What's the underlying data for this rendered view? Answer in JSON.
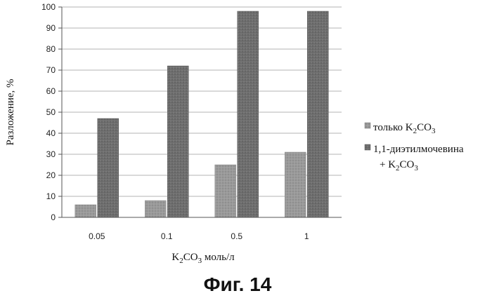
{
  "chart_data": {
    "type": "bar",
    "categories": [
      "0.05",
      "0.1",
      "0.5",
      "1"
    ],
    "series": [
      {
        "name_main": "только K",
        "name_sub": "2",
        "name_main2": "CO",
        "name_sub2": "3",
        "values": [
          6,
          8,
          25,
          31
        ]
      },
      {
        "name_main": "1,1-диэтилмочевина",
        "name_line2_main": "+ K",
        "name_line2_sub": "2",
        "name_line2_main2": "CO",
        "name_line2_sub2": "3",
        "values": [
          47,
          72,
          98,
          98
        ]
      }
    ],
    "ylim": [
      0,
      100
    ],
    "yticks": [
      "0",
      "10",
      "20",
      "30",
      "40",
      "50",
      "60",
      "70",
      "80",
      "90",
      "100"
    ],
    "ylabel": "Разложение, %",
    "xlabel_parts": {
      "a": "K",
      "b": "2",
      "c": "CO",
      "d": "3",
      "e": " моль/л"
    },
    "grid": true,
    "legend_placement": "right",
    "colors": {
      "series1": "#9a9a9a",
      "series2": "#6f6f6f"
    }
  },
  "caption": "Фиг. 14"
}
